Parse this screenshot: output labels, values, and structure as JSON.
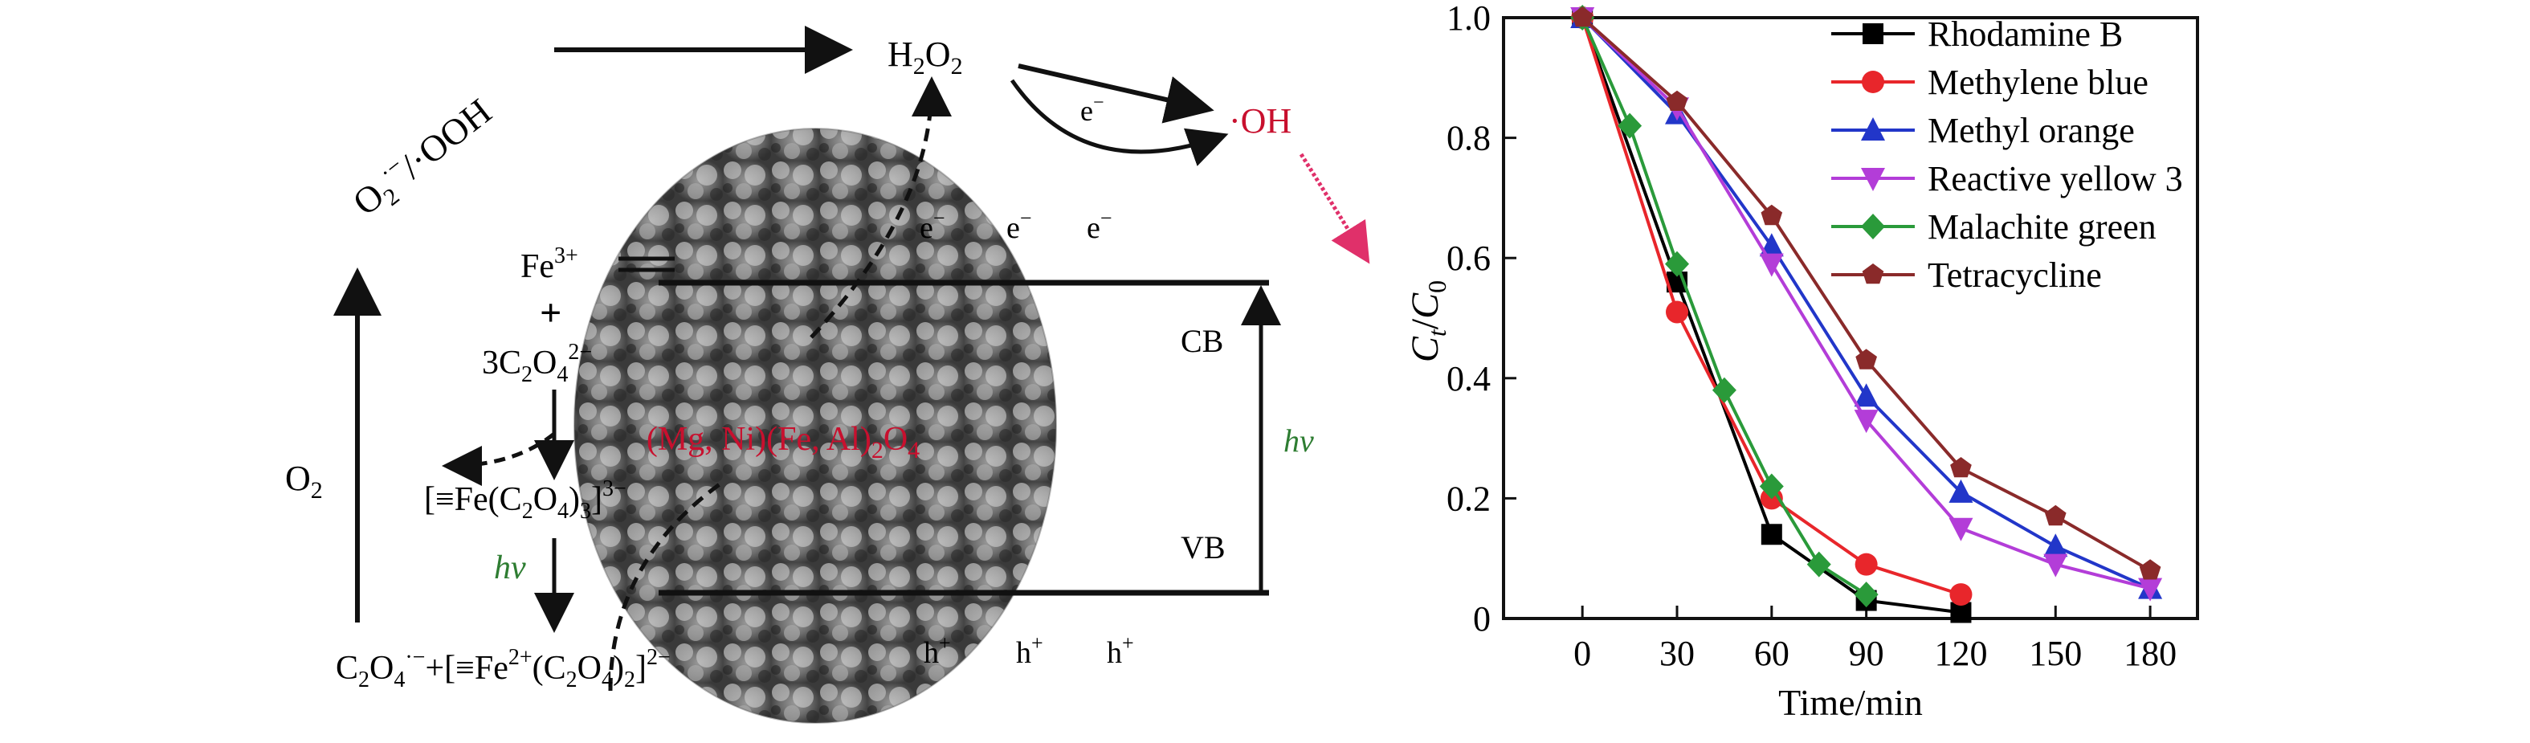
{
  "scheme": {
    "particle_label": "(Mg, Ni)(Fe, Al)",
    "particle_sub": "2",
    "particle_tail": "O",
    "particle_tail_sub": "4",
    "cb": "CB",
    "vb": "VB",
    "hv": "hv",
    "electron": "e",
    "electron_sup": "−",
    "hole": "h",
    "hole_sup": "+",
    "superoxide_a": "O",
    "superoxide_sub": "2",
    "superoxide_sup": "·−",
    "superoxide_b": "/·OOH",
    "h2o2_a": "H",
    "h2o2_sub1": "2",
    "h2o2_b": "O",
    "h2o2_sub2": "2",
    "hydroxyl": "·OH",
    "fe3_a": "Fe",
    "fe3_sup": "3+",
    "plus": "+",
    "oxalate_a": "3C",
    "oxalate_sub1": "2",
    "oxalate_b": "O",
    "oxalate_sub2": "4",
    "oxalate_sup": "2−",
    "complex_a": "[≡Fe(C",
    "complex_sub1": "2",
    "complex_b": "O",
    "complex_sub2": "4",
    "complex_c": ")",
    "complex_sub3": "3",
    "complex_d": "]",
    "complex_sup": "3−",
    "o2": "O",
    "o2_sub": "2",
    "bottom_a": "C",
    "bottom_sub1": "2",
    "bottom_b": "O",
    "bottom_sub2": "4",
    "bottom_sup1": "·−",
    "bottom_c": "+[≡Fe",
    "bottom_sup2": "2+",
    "bottom_d": "(C",
    "bottom_sub3": "2",
    "bottom_e": "O",
    "bottom_sub4": "4",
    "bottom_f": ")",
    "bottom_sub5": "2",
    "bottom_g": "]",
    "bottom_sup3": "2−"
  },
  "colors": {
    "red_label": "#c8102e",
    "green_label": "#2e7d32",
    "pink_arrow": "#e0306a"
  },
  "chart_data": {
    "type": "line",
    "ylabel_C1": "C",
    "ylabel_sub1": "t",
    "ylabel_slash": "/",
    "ylabel_C2": "C",
    "ylabel_sub2": "0",
    "xlabel": "Time/min",
    "xlim": [
      -25,
      195
    ],
    "ylim": [
      0,
      1.0
    ],
    "xticks": [
      0,
      30,
      60,
      90,
      120,
      150,
      180
    ],
    "yticks": [
      0,
      0.2,
      0.4,
      0.6,
      0.8,
      1.0
    ],
    "ytick_labels": [
      "0",
      "0.2",
      "0.4",
      "0.6",
      "0.8",
      "1.0"
    ],
    "legend_position": "top-right",
    "series": [
      {
        "name": "Rhodamine B",
        "color": "#000000",
        "marker": "square",
        "x": [
          0,
          30,
          60,
          90,
          120
        ],
        "y": [
          1.0,
          0.56,
          0.14,
          0.03,
          0.01
        ]
      },
      {
        "name": "Methylene blue",
        "color": "#e8262b",
        "marker": "circle",
        "x": [
          0,
          30,
          60,
          90,
          120
        ],
        "y": [
          1.0,
          0.51,
          0.2,
          0.09,
          0.04
        ]
      },
      {
        "name": "Methyl orange",
        "color": "#2236c9",
        "marker": "triangle-up",
        "x": [
          0,
          30,
          60,
          90,
          120,
          150,
          180
        ],
        "y": [
          1.0,
          0.84,
          0.62,
          0.37,
          0.21,
          0.12,
          0.05
        ]
      },
      {
        "name": "Reactive yellow 3",
        "color": "#b33dd8",
        "marker": "triangle-down",
        "x": [
          0,
          30,
          60,
          90,
          120,
          150,
          180
        ],
        "y": [
          1.0,
          0.85,
          0.59,
          0.33,
          0.15,
          0.09,
          0.05
        ]
      },
      {
        "name": "Malachite green",
        "color": "#2a9a3a",
        "marker": "diamond",
        "x": [
          0,
          15,
          30,
          45,
          60,
          75,
          90
        ],
        "y": [
          1.0,
          0.82,
          0.59,
          0.38,
          0.22,
          0.09,
          0.04
        ]
      },
      {
        "name": "Tetracycline",
        "color": "#8a2a2a",
        "marker": "pentagon",
        "x": [
          0,
          30,
          60,
          90,
          120,
          150,
          180
        ],
        "y": [
          1.0,
          0.86,
          0.67,
          0.43,
          0.25,
          0.17,
          0.08
        ]
      }
    ]
  }
}
